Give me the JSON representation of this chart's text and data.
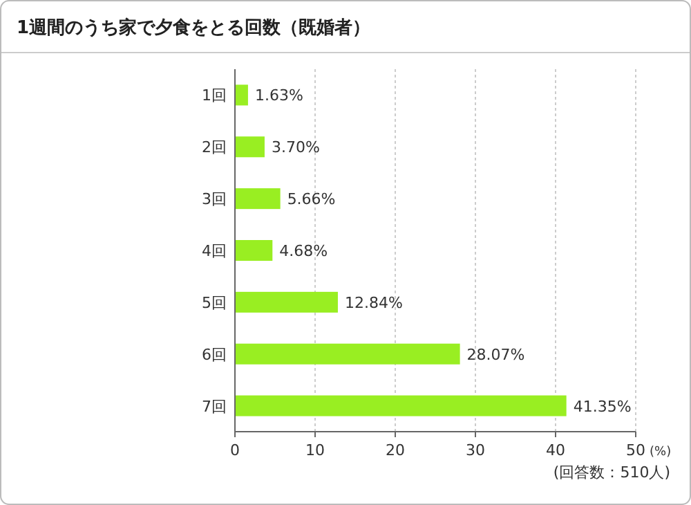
{
  "chart_data": {
    "type": "bar",
    "orientation": "horizontal",
    "title": "1週間のうち家で夕食をとる回数（既婚者）",
    "categories": [
      "1回",
      "2回",
      "3回",
      "4回",
      "5回",
      "6回",
      "7回"
    ],
    "values": [
      1.63,
      3.7,
      5.66,
      4.68,
      12.84,
      28.07,
      41.35
    ],
    "value_labels": [
      "1.63%",
      "3.70%",
      "5.66%",
      "4.68%",
      "12.84%",
      "28.07%",
      "41.35%"
    ],
    "color": "#99ee22",
    "xlim": [
      0,
      50
    ],
    "xticks": [
      0,
      10,
      20,
      30,
      40,
      50
    ],
    "xlabel": "(%)",
    "grid": "x",
    "annotations": [
      "(回答数：510人)"
    ]
  }
}
